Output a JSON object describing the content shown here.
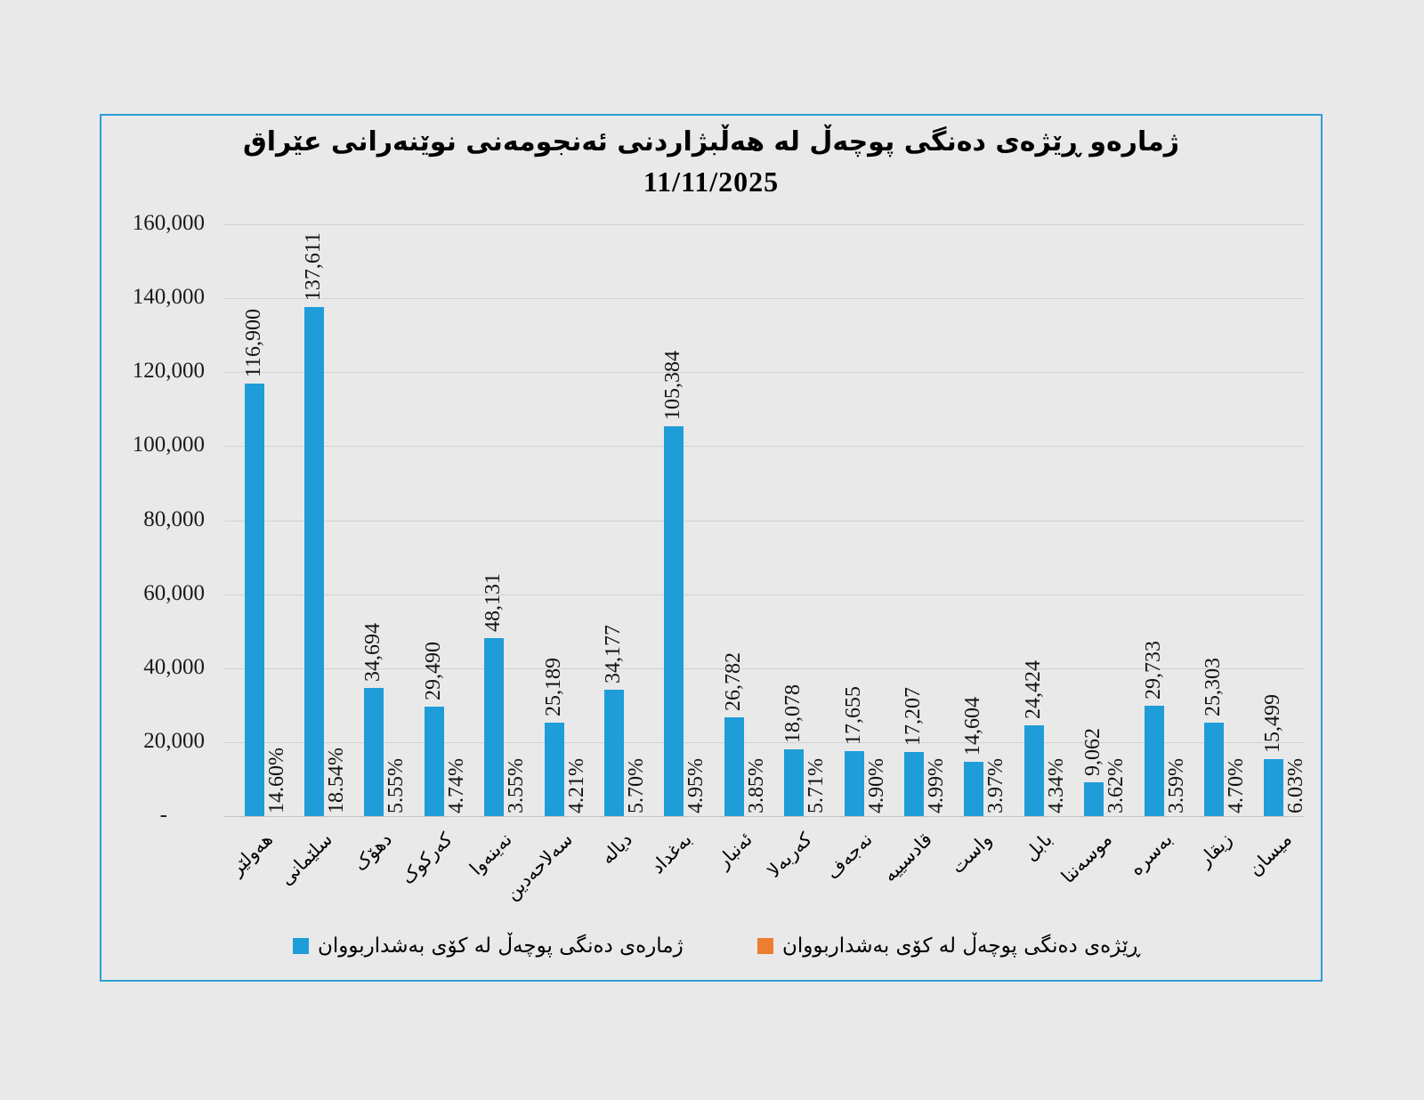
{
  "page": {
    "background_color": "#e9e9e9",
    "frame_border_color": "#2f9cd9"
  },
  "chart_data": {
    "type": "bar",
    "title": "ژمارەو ڕێژەی دەنگی پوچەڵ لە هەڵبژاردنی ئەنجومەنی نوێنەرانی عێراق",
    "subtitle": "11/11/2025",
    "direction": "rtl",
    "grid": true,
    "legend_position": "bottom",
    "xlabel": "",
    "ylabel": "",
    "ylim": [
      0,
      160000
    ],
    "y_ticks": [
      "-",
      "20,000",
      "40,000",
      "60,000",
      "80,000",
      "100,000",
      "120,000",
      "140,000",
      "160,000"
    ],
    "categories": [
      "هەولێر",
      "سلێمانی",
      "دهۆک",
      "کەرکوک",
      "نەینەوا",
      "سەلاحەدین",
      "دیالە",
      "بەغداد",
      "ئەنبار",
      "کەربەلا",
      "نەجەف",
      "قادسییە",
      "واست",
      "بابل",
      "موسەننا",
      "بەسرە",
      "زیقار",
      "میسان"
    ],
    "series": [
      {
        "name": "ژمارەی دەنگی پوچەڵ لە کۆی بەشداربووان",
        "color": "#1f9dd9",
        "values": [
          116900,
          137611,
          34694,
          29490,
          48131,
          25189,
          34177,
          105384,
          26782,
          18078,
          17655,
          17207,
          14604,
          24424,
          9062,
          29733,
          25303,
          15499
        ],
        "labels": [
          "116,900",
          "137,611",
          "34,694",
          "29,490",
          "48,131",
          "25,189",
          "34,177",
          "105,384",
          "26,782",
          "18,078",
          "17,655",
          "17,207",
          "14,604",
          "24,424",
          "9,062",
          "29,733",
          "25,303",
          "15,499"
        ]
      },
      {
        "name": "ڕێژەی دەنگی پوچەڵ لە کۆی بەشداربووان",
        "color": "#ed7d31",
        "labels": [
          "14.60%",
          "18.54%",
          "5.55%",
          "4.74%",
          "3.55%",
          "4.21%",
          "5.70%",
          "4.95%",
          "3.85%",
          "5.71%",
          "4.90%",
          "4.99%",
          "3.97%",
          "4.34%",
          "3.62%",
          "3.59%",
          "4.70%",
          "6.03%"
        ]
      }
    ]
  }
}
